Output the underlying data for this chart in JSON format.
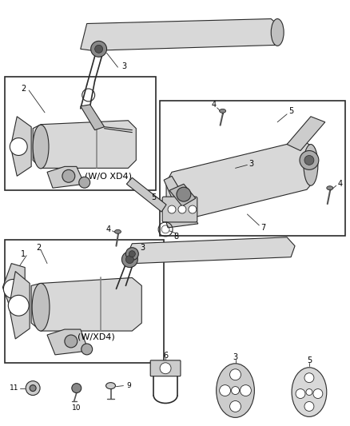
{
  "bg_color": "#ffffff",
  "line_color": "#2a2a2a",
  "fig_width": 4.38,
  "fig_height": 5.33,
  "dpi": 100,
  "labels": {
    "top_box": "(W/O XD4)",
    "bottom_box": "(W/XD4)"
  }
}
